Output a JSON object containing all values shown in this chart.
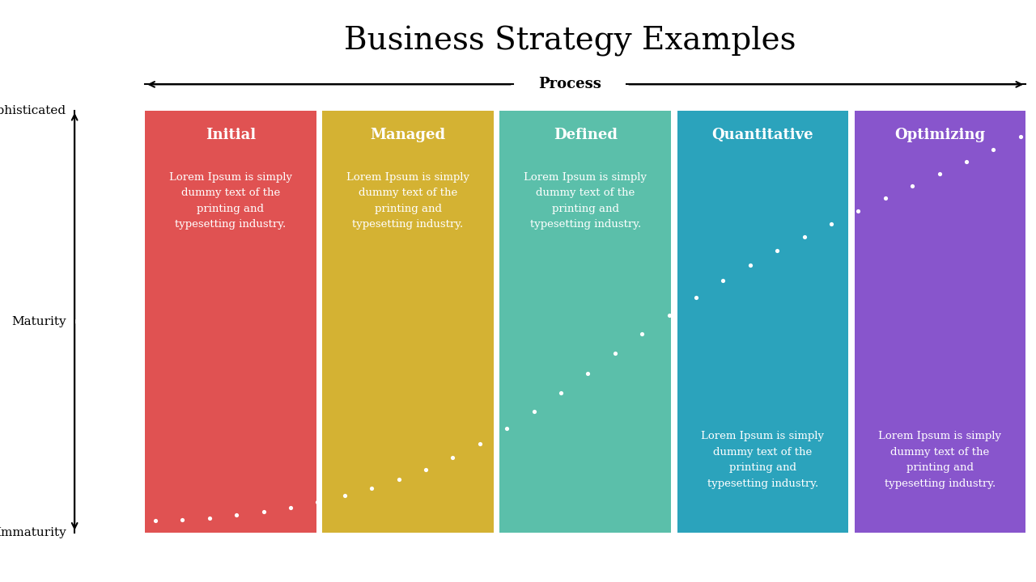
{
  "title": "Business Strategy Examples",
  "title_fontsize": 28,
  "background_color": "#ffffff",
  "columns": [
    {
      "label": "Initial",
      "color": "#e05252"
    },
    {
      "label": "Managed",
      "color": "#d4b233"
    },
    {
      "label": "Defined",
      "color": "#5bbfaa"
    },
    {
      "label": "Quantitative",
      "color": "#2ba3bc"
    },
    {
      "label": "Optimizing",
      "color": "#8855cc"
    }
  ],
  "body_text": "Lorem Ipsum is simply\ndummy text of the\nprinting and\ntypesetting industry.",
  "process_label": "Process",
  "maturity_labels": [
    "Sophisticated",
    "Maturity",
    "Immaturity"
  ],
  "maturity_label_fontsize": 11,
  "header_fontsize": 13,
  "body_fontsize": 9.5,
  "process_fontsize": 13,
  "dot_color": "#ffffff"
}
